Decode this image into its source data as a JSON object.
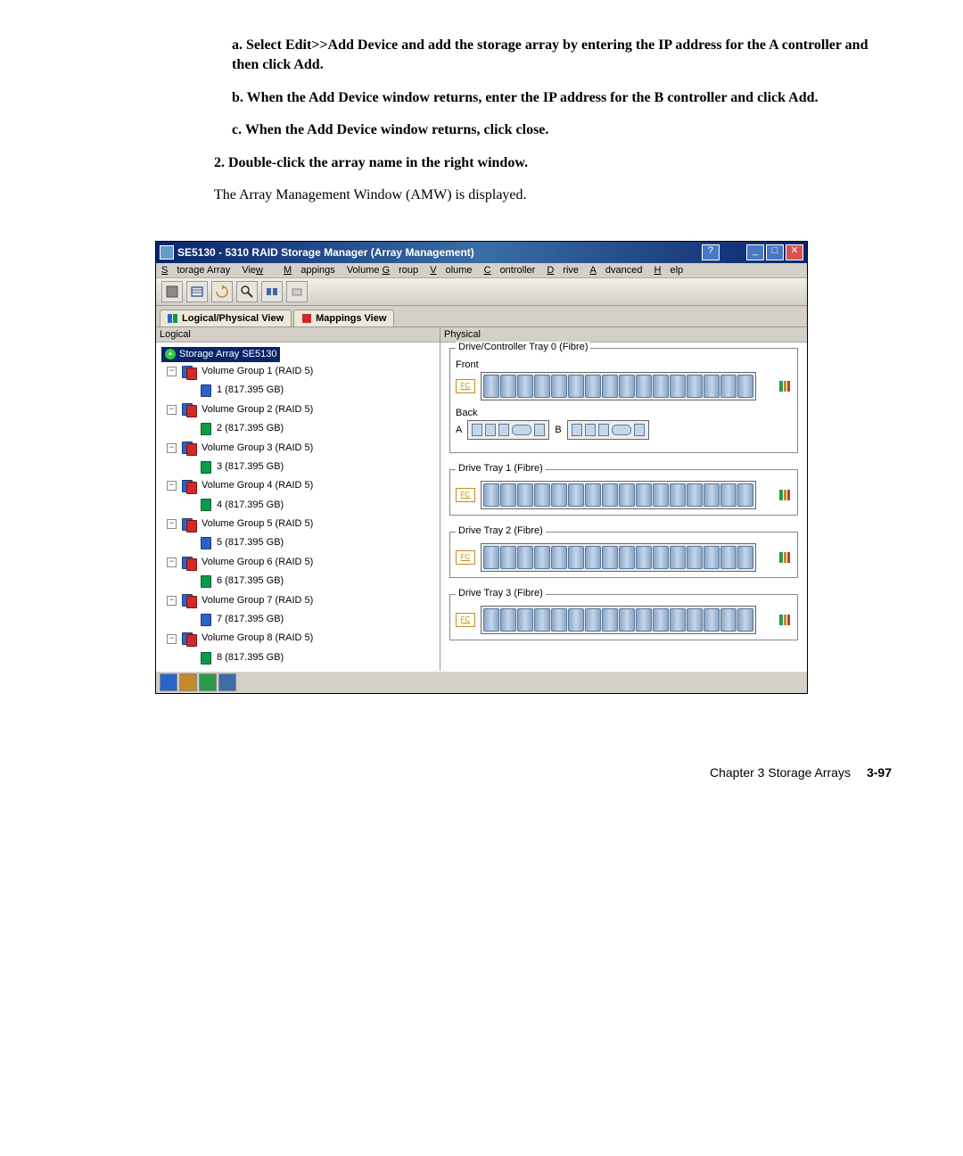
{
  "instructions": {
    "a": "a. Select Edit>>Add Device and add the storage array by entering the IP address for the A controller and then click Add.",
    "b": "b. When the Add Device window returns, enter the IP address for the B controller and click Add.",
    "c": "c. When the Add Device window returns, click close.",
    "step2": "2. Double-click the array name in the right window.",
    "step2_body": "The Array Management Window (AMW) is displayed."
  },
  "window": {
    "title": "SE5130 - 5310 RAID Storage Manager (Array Management)",
    "menus": [
      "Storage Array",
      "View",
      "Mappings",
      "Volume Group",
      "Volume",
      "Controller",
      "Drive",
      "Advanced",
      "Help"
    ],
    "tabs": [
      {
        "label": "Logical/Physical View"
      },
      {
        "label": "Mappings View"
      }
    ],
    "left_header": "Logical",
    "right_header": "Physical",
    "root_label": "Storage Array SE5130",
    "volume_groups": [
      {
        "name": "Volume Group 1 (RAID 5)",
        "vol_num": "1",
        "vol_size": "(817.395 GB)",
        "vol_alt": false
      },
      {
        "name": "Volume Group 2 (RAID 5)",
        "vol_num": "2",
        "vol_size": "(817.395 GB)",
        "vol_alt": true
      },
      {
        "name": "Volume Group 3 (RAID 5)",
        "vol_num": "3",
        "vol_size": "(817.395 GB)",
        "vol_alt": true
      },
      {
        "name": "Volume Group 4 (RAID 5)",
        "vol_num": "4",
        "vol_size": "(817.395 GB)",
        "vol_alt": true
      },
      {
        "name": "Volume Group 5 (RAID 5)",
        "vol_num": "5",
        "vol_size": "(817.395 GB)",
        "vol_alt": false
      },
      {
        "name": "Volume Group 6 (RAID 5)",
        "vol_num": "6",
        "vol_size": "(817.395 GB)",
        "vol_alt": true
      },
      {
        "name": "Volume Group 7 (RAID 5)",
        "vol_num": "7",
        "vol_size": "(817.395 GB)",
        "vol_alt": false
      },
      {
        "name": "Volume Group 8 (RAID 5)",
        "vol_num": "8",
        "vol_size": "(817.395 GB)",
        "vol_alt": true
      }
    ],
    "tray0": {
      "legend": "Drive/Controller Tray 0 (Fibre)",
      "front_label": "Front",
      "back_label": "Back",
      "fc": "FC",
      "a": "A",
      "b": "B",
      "drive_count": 16
    },
    "trays": [
      {
        "legend": "Drive Tray  1 (Fibre)",
        "fc": "FC",
        "drive_count": 16
      },
      {
        "legend": "Drive Tray  2 (Fibre)",
        "fc": "FC",
        "drive_count": 16
      },
      {
        "legend": "Drive Tray  3 (Fibre)",
        "fc": "FC",
        "drive_count": 16
      }
    ]
  },
  "footer": {
    "chapter": "Chapter 3    Storage Arrays",
    "page": "3-97"
  },
  "colors": {
    "titlebar_start": "#0a246a",
    "titlebar_end": "#3a6ea5",
    "win_bg": "#d4d0c8",
    "close_red": "#d9534f",
    "disk_blue": "#2a64c8",
    "disk_green": "#0a9a4a"
  }
}
